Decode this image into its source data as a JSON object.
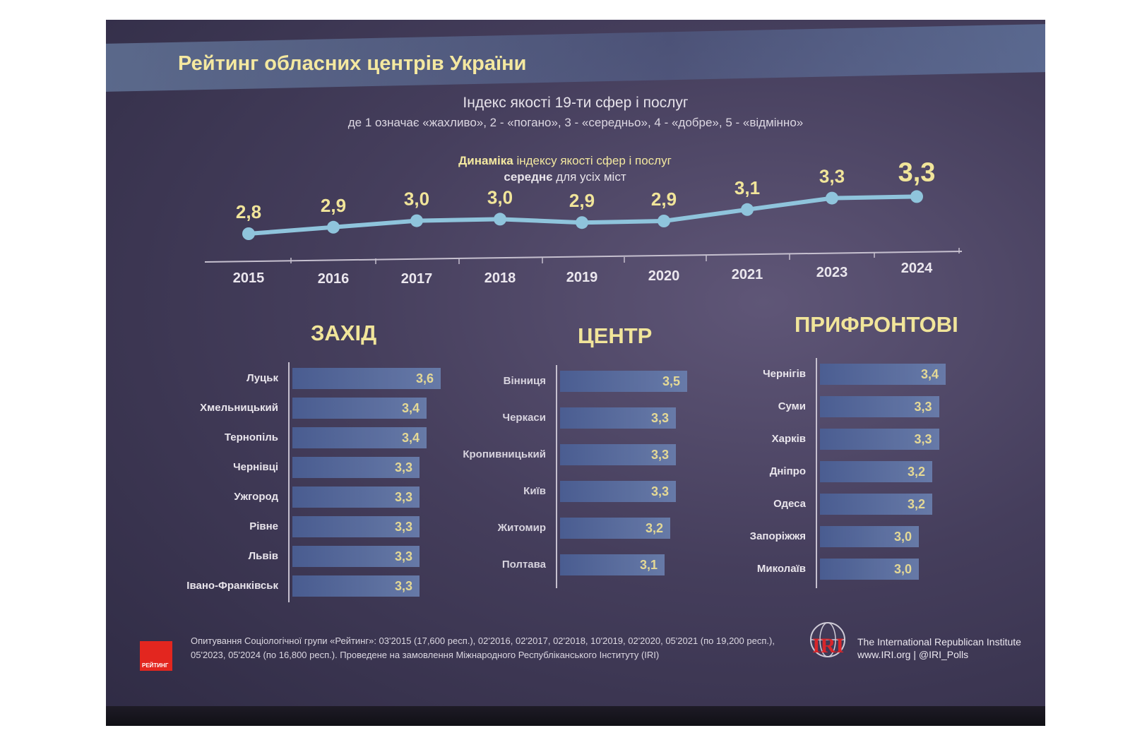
{
  "header": {
    "title": "Рейтинг обласних центрів України",
    "subtitle": "Індекс якості 19-ти сфер і послуг",
    "scale_note": "де 1 означає «жахливо», 2 - «погано», 3 - «середньо», 4 - «добре», 5 - «відмінно»",
    "dynamics_title_bold": "Динаміка",
    "dynamics_title_rest": " індексу якості сфер і послуг",
    "dynamics_sub_bold": "середнє",
    "dynamics_sub_rest": " для усіх міст"
  },
  "chart_data": [
    {
      "type": "line",
      "title": "Динаміка індексу якості сфер і послуг",
      "subtitle": "середнє для усіх міст",
      "x": [
        "2015",
        "2016",
        "2017",
        "2018",
        "2019",
        "2020",
        "2021",
        "2023",
        "2024"
      ],
      "y": [
        2.8,
        2.9,
        3.0,
        3.0,
        2.9,
        2.9,
        3.1,
        3.3,
        3.3
      ],
      "labels": [
        "2,8",
        "2,9",
        "3,0",
        "3,0",
        "2,9",
        "2,9",
        "3,1",
        "3,3",
        "3,3"
      ],
      "color": "#8fc4dc"
    },
    {
      "type": "bar",
      "title": "ЗАХІД",
      "categories": [
        "Луцьк",
        "Хмельницький",
        "Тернопіль",
        "Чернівці",
        "Ужгород",
        "Рівне",
        "Львів",
        "Івано-Франківськ"
      ],
      "values": [
        3.6,
        3.4,
        3.4,
        3.3,
        3.3,
        3.3,
        3.3,
        3.3
      ],
      "labels": [
        "3,6",
        "3,4",
        "3,4",
        "3,3",
        "3,3",
        "3,3",
        "3,3",
        "3,3"
      ]
    },
    {
      "type": "bar",
      "title": "ЦЕНТР",
      "categories": [
        "Вінниця",
        "Черкаси",
        "Кропивницький",
        "Київ",
        "Житомир",
        "Полтава"
      ],
      "values": [
        3.5,
        3.3,
        3.3,
        3.3,
        3.2,
        3.1
      ],
      "labels": [
        "3,5",
        "3,3",
        "3,3",
        "3,3",
        "3,2",
        "3,1"
      ]
    },
    {
      "type": "bar",
      "title": "ПРИФРОНТОВІ",
      "categories": [
        "Чернігів",
        "Суми",
        "Харків",
        "Дніпро",
        "Одеса",
        "Запоріжжя",
        "Миколаїв"
      ],
      "values": [
        3.4,
        3.3,
        3.3,
        3.2,
        3.2,
        3.0,
        3.0
      ],
      "labels": [
        "3,4",
        "3,3",
        "3,3",
        "3,2",
        "3,2",
        "3,0",
        "3,0"
      ]
    }
  ],
  "footer": {
    "logo_text": "РЕЙТИНГ",
    "source": "Опитування Соціологічної групи «Рейтинг»: 03'2015 (17,600 респ.), 02'2016, 02'2017, 02'2018, 10'2019, 02'2020, 05'2021 (по 19,200 респ.), 05'2023, 05'2024 (по 16,800 респ.). Проведене на замовлення Міжнародного Республіканського Інституту (IRI)",
    "iri_logo_text": "IRI",
    "iri_name": "The International Republican Institute",
    "iri_links": "www.IRI.org | @IRI_Polls"
  },
  "colors": {
    "accent_yellow": "#f1e59a",
    "bar": "#5a6fa5",
    "line": "#8fc4dc",
    "logo_red": "#e3261f"
  }
}
